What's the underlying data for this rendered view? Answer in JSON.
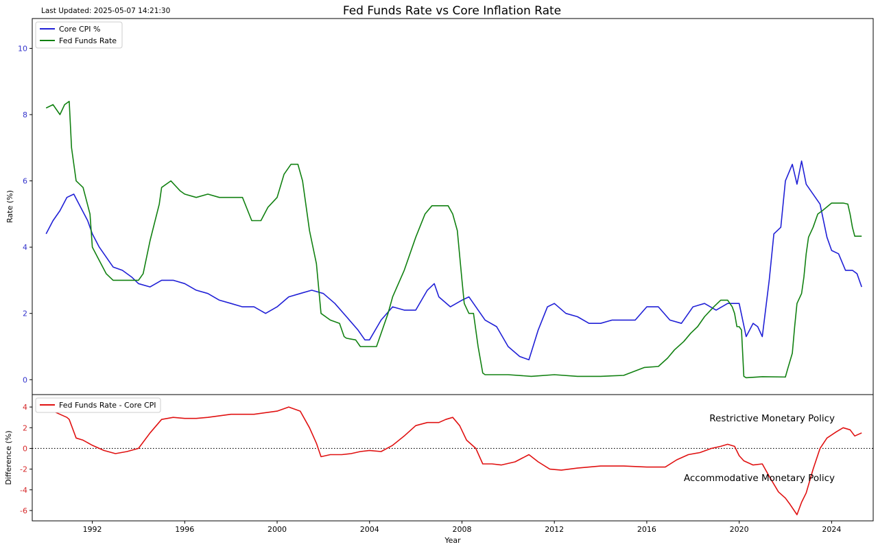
{
  "figure": {
    "title": "Fed Funds Rate vs Core Inflation Rate",
    "last_updated": "Last Updated: 2025-05-07 14:21:30"
  },
  "chart_data": [
    {
      "type": "line",
      "panel": "top",
      "xlabel": "",
      "ylabel": "Rate (%)",
      "xlim": [
        1989.4,
        2025.8
      ],
      "ylim": [
        -0.45,
        10.9
      ],
      "yticks": [
        0,
        2,
        4,
        6,
        8,
        10
      ],
      "y_tick_color": "#3333cc",
      "grid": false,
      "legend_position": "top-left",
      "series": [
        {
          "name": "Core CPI %",
          "color": "#1f1fd6",
          "x": [
            1990.0,
            1990.3,
            1990.6,
            1990.9,
            1991.2,
            1991.5,
            1991.8,
            1992.0,
            1992.3,
            1992.6,
            1992.9,
            1993.3,
            1993.7,
            1994.0,
            1994.5,
            1995.0,
            1995.5,
            1996.0,
            1996.5,
            1997.0,
            1997.5,
            1998.0,
            1998.5,
            1999.0,
            1999.5,
            2000.0,
            2000.5,
            2001.0,
            2001.5,
            2002.0,
            2002.5,
            2003.0,
            2003.5,
            2003.8,
            2004.0,
            2004.5,
            2005.0,
            2005.5,
            2006.0,
            2006.5,
            2006.8,
            2007.0,
            2007.5,
            2008.0,
            2008.3,
            2008.6,
            2009.0,
            2009.5,
            2010.0,
            2010.5,
            2010.9,
            2011.3,
            2011.7,
            2012.0,
            2012.5,
            2013.0,
            2013.5,
            2014.0,
            2014.5,
            2015.0,
            2015.5,
            2016.0,
            2016.5,
            2017.0,
            2017.5,
            2018.0,
            2018.5,
            2019.0,
            2019.5,
            2020.0,
            2020.3,
            2020.6,
            2020.8,
            2021.0,
            2021.3,
            2021.5,
            2021.8,
            2022.0,
            2022.3,
            2022.5,
            2022.7,
            2022.9,
            2023.2,
            2023.5,
            2023.8,
            2024.0,
            2024.3,
            2024.6,
            2024.9,
            2025.1,
            2025.3
          ],
          "y": [
            4.4,
            4.8,
            5.1,
            5.5,
            5.6,
            5.2,
            4.8,
            4.4,
            4.0,
            3.7,
            3.4,
            3.3,
            3.1,
            2.9,
            2.8,
            3.0,
            3.0,
            2.9,
            2.7,
            2.6,
            2.4,
            2.3,
            2.2,
            2.2,
            2.0,
            2.2,
            2.5,
            2.6,
            2.7,
            2.6,
            2.3,
            1.9,
            1.5,
            1.2,
            1.2,
            1.8,
            2.2,
            2.1,
            2.1,
            2.7,
            2.9,
            2.5,
            2.2,
            2.4,
            2.5,
            2.2,
            1.8,
            1.6,
            1.0,
            0.7,
            0.6,
            1.5,
            2.2,
            2.3,
            2.0,
            1.9,
            1.7,
            1.7,
            1.8,
            1.8,
            1.8,
            2.2,
            2.2,
            1.8,
            1.7,
            2.2,
            2.3,
            2.1,
            2.3,
            2.3,
            1.3,
            1.7,
            1.6,
            1.3,
            3.0,
            4.4,
            4.6,
            6.0,
            6.5,
            5.9,
            6.6,
            5.9,
            5.6,
            5.3,
            4.3,
            3.9,
            3.8,
            3.3,
            3.3,
            3.2,
            2.8
          ]
        },
        {
          "name": "Fed Funds Rate",
          "color": "#108010",
          "x": [
            1990.0,
            1990.3,
            1990.6,
            1990.8,
            1991.0,
            1991.1,
            1991.3,
            1991.6,
            1991.9,
            1992.0,
            1992.3,
            1992.6,
            1992.9,
            1993.2,
            1993.6,
            1994.0,
            1994.2,
            1994.5,
            1994.9,
            1995.0,
            1995.4,
            1995.8,
            1996.0,
            1996.5,
            1997.0,
            1997.5,
            1998.0,
            1998.5,
            1998.9,
            1999.3,
            1999.6,
            2000.0,
            2000.3,
            2000.6,
            2000.9,
            2001.1,
            2001.4,
            2001.7,
            2001.9,
            2002.3,
            2002.7,
            2002.9,
            2003.0,
            2003.4,
            2003.6,
            2004.0,
            2004.3,
            2004.5,
            2004.8,
            2005.0,
            2005.5,
            2006.0,
            2006.4,
            2006.7,
            2007.0,
            2007.4,
            2007.6,
            2007.8,
            2008.0,
            2008.1,
            2008.3,
            2008.5,
            2008.7,
            2008.9,
            2009.0,
            2010.0,
            2011.0,
            2012.0,
            2013.0,
            2014.0,
            2015.0,
            2015.9,
            2016.5,
            2016.9,
            2017.2,
            2017.6,
            2017.9,
            2018.2,
            2018.5,
            2018.9,
            2019.2,
            2019.5,
            2019.7,
            2019.8,
            2019.9,
            2020.0,
            2020.1,
            2020.2,
            2020.3,
            2021.0,
            2022.0,
            2022.1,
            2022.3,
            2022.4,
            2022.5,
            2022.7,
            2022.8,
            2022.9,
            2023.0,
            2023.2,
            2023.4,
            2023.6,
            2024.0,
            2024.5,
            2024.7,
            2024.8,
            2024.9,
            2025.0,
            2025.3
          ],
          "y": [
            8.2,
            8.3,
            8.0,
            8.3,
            8.4,
            7.0,
            6.0,
            5.8,
            5.0,
            4.0,
            3.6,
            3.2,
            3.0,
            3.0,
            3.0,
            3.0,
            3.2,
            4.2,
            5.3,
            5.8,
            6.0,
            5.7,
            5.6,
            5.5,
            5.6,
            5.5,
            5.5,
            5.5,
            4.8,
            4.8,
            5.2,
            5.5,
            6.2,
            6.5,
            6.5,
            6.0,
            4.5,
            3.5,
            2.0,
            1.8,
            1.7,
            1.3,
            1.25,
            1.2,
            1.0,
            1.0,
            1.0,
            1.4,
            2.0,
            2.5,
            3.3,
            4.3,
            5.0,
            5.25,
            5.25,
            5.25,
            5.0,
            4.5,
            3.0,
            2.3,
            2.0,
            2.0,
            1.0,
            0.2,
            0.15,
            0.15,
            0.1,
            0.15,
            0.1,
            0.1,
            0.13,
            0.37,
            0.4,
            0.65,
            0.9,
            1.15,
            1.4,
            1.6,
            1.9,
            2.2,
            2.4,
            2.4,
            2.2,
            2.0,
            1.6,
            1.6,
            1.5,
            0.1,
            0.06,
            0.09,
            0.08,
            0.33,
            0.8,
            1.6,
            2.3,
            2.6,
            3.1,
            3.8,
            4.3,
            4.6,
            5.0,
            5.1,
            5.33,
            5.33,
            5.3,
            5.0,
            4.6,
            4.33,
            4.33
          ]
        }
      ]
    },
    {
      "type": "line",
      "panel": "bottom",
      "xlabel": "Year",
      "ylabel": "Difference (%)",
      "xlim": [
        1989.4,
        2025.8
      ],
      "ylim": [
        -7.0,
        5.2
      ],
      "yticks": [
        -6,
        -4,
        -2,
        0,
        2,
        4
      ],
      "y_tick_color": "#d62728",
      "xticks": [
        1992,
        1996,
        2000,
        2004,
        2008,
        2012,
        2016,
        2020,
        2024
      ],
      "grid": false,
      "legend_position": "top-left",
      "reference_line": 0,
      "annotations": [
        "Restrictive Monetary Policy",
        "Accommodative Monetary Policy"
      ],
      "series": [
        {
          "name": "Fed Funds Rate - Core CPI",
          "color": "#e01010",
          "x": [
            1990.0,
            1990.3,
            1990.6,
            1990.9,
            1991.0,
            1991.3,
            1991.6,
            1992.0,
            1992.5,
            1993.0,
            1993.5,
            1994.0,
            1994.5,
            1995.0,
            1995.5,
            1996.0,
            1996.5,
            1997.0,
            1998.0,
            1999.0,
            2000.0,
            2000.5,
            2001.0,
            2001.4,
            2001.7,
            2001.9,
            2002.3,
            2002.8,
            2003.2,
            2003.6,
            2004.0,
            2004.5,
            2005.0,
            2005.5,
            2006.0,
            2006.5,
            2007.0,
            2007.3,
            2007.6,
            2007.9,
            2008.2,
            2008.6,
            2008.9,
            2009.3,
            2009.7,
            2010.3,
            2010.9,
            2011.3,
            2011.8,
            2012.3,
            2013.0,
            2014.0,
            2015.0,
            2016.0,
            2016.8,
            2017.3,
            2017.8,
            2018.3,
            2018.8,
            2019.2,
            2019.5,
            2019.8,
            2020.0,
            2020.2,
            2020.6,
            2021.0,
            2021.3,
            2021.7,
            2022.0,
            2022.2,
            2022.5,
            2022.7,
            2022.9,
            2023.2,
            2023.5,
            2023.8,
            2024.2,
            2024.5,
            2024.8,
            2025.0,
            2025.3
          ],
          "y": [
            3.8,
            3.6,
            3.3,
            3.0,
            2.8,
            1.0,
            0.8,
            0.3,
            -0.2,
            -0.5,
            -0.3,
            0.0,
            1.5,
            2.8,
            3.0,
            2.9,
            2.9,
            3.0,
            3.3,
            3.3,
            3.6,
            4.0,
            3.6,
            2.0,
            0.5,
            -0.8,
            -0.6,
            -0.6,
            -0.5,
            -0.3,
            -0.2,
            -0.3,
            0.3,
            1.2,
            2.2,
            2.5,
            2.5,
            2.8,
            3.0,
            2.2,
            0.8,
            0.0,
            -1.5,
            -1.5,
            -1.6,
            -1.3,
            -0.6,
            -1.3,
            -2.0,
            -2.1,
            -1.9,
            -1.7,
            -1.7,
            -1.8,
            -1.8,
            -1.1,
            -0.6,
            -0.4,
            0.0,
            0.2,
            0.4,
            0.2,
            -0.7,
            -1.2,
            -1.6,
            -1.5,
            -2.7,
            -4.2,
            -4.8,
            -5.4,
            -6.4,
            -5.2,
            -4.3,
            -2.0,
            0.0,
            1.0,
            1.6,
            2.0,
            1.8,
            1.2,
            1.5
          ]
        }
      ]
    }
  ]
}
